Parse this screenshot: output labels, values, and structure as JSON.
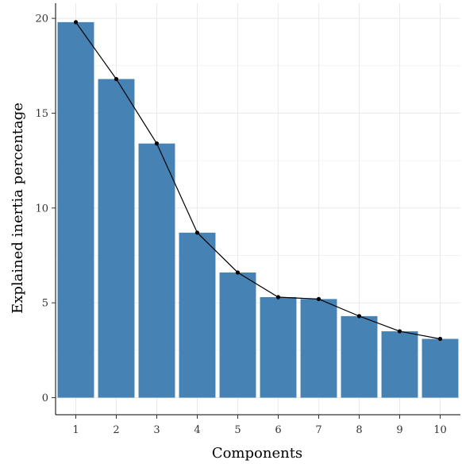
{
  "chart_data": {
    "type": "bar",
    "title": "",
    "xlabel": "Components",
    "ylabel": "Explained inertia percentage",
    "categories": [
      "1",
      "2",
      "3",
      "4",
      "5",
      "6",
      "7",
      "8",
      "9",
      "10"
    ],
    "values": [
      19.8,
      16.8,
      13.4,
      8.7,
      6.6,
      5.3,
      5.2,
      4.3,
      3.5,
      3.1
    ],
    "overlay": "line with points through bar tops",
    "ylim": [
      -0.9,
      20.8
    ],
    "yticks": [
      0,
      5,
      10,
      15,
      20
    ],
    "grid": true,
    "colors": {
      "bar": "#4682B4",
      "line": "#000000",
      "grid": "#EBEBEB",
      "axis": "#000000"
    }
  }
}
